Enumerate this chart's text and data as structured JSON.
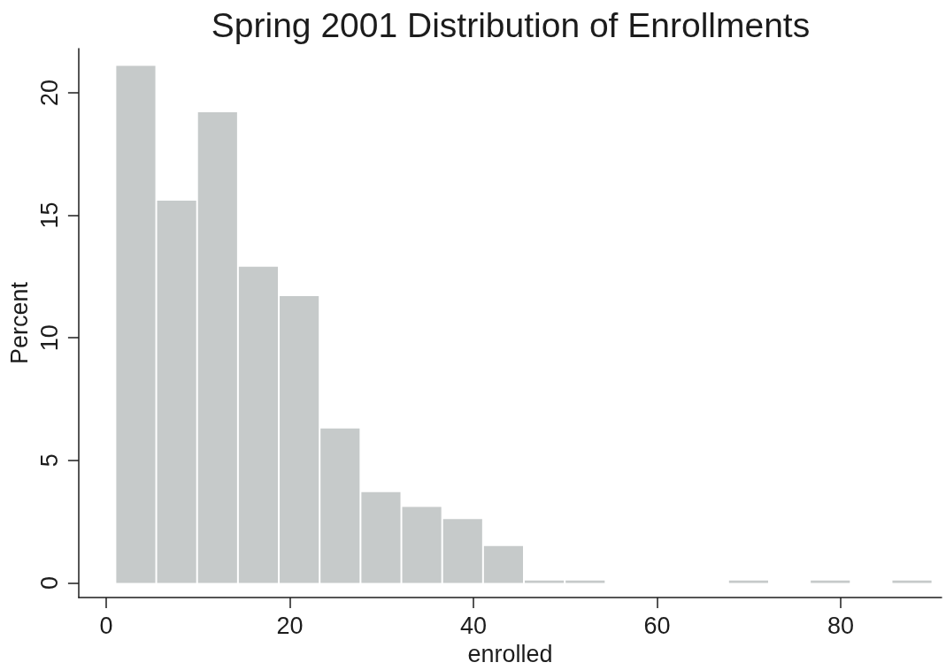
{
  "chart_data": {
    "type": "histogram",
    "title": "Spring 2001 Distribution of Enrollments",
    "xlabel": "enrolled",
    "ylabel": "Percent",
    "bins": [
      1,
      5.45,
      9.9,
      14.35,
      18.8,
      23.25,
      27.7,
      32.15,
      36.6,
      41.05,
      45.5,
      49.95,
      54.4,
      58.85,
      63.3,
      67.75,
      72.2,
      76.65,
      81.1,
      85.55,
      90
    ],
    "values": [
      21.1,
      15.6,
      19.2,
      12.9,
      11.7,
      6.3,
      3.7,
      3.1,
      2.6,
      1.5,
      0.1,
      0.1,
      0,
      0,
      0,
      0.1,
      0,
      0.1,
      0,
      0.1
    ],
    "color": "#c6caca",
    "xlim": [
      -3,
      91
    ],
    "xticks": [
      0,
      20,
      40,
      60,
      80
    ],
    "ylim": [
      -0.6,
      21.8
    ],
    "yticks": [
      0,
      5,
      10,
      15,
      20
    ]
  }
}
